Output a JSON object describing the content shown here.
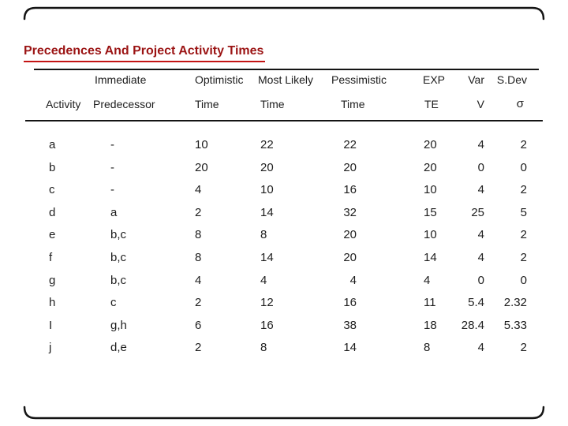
{
  "title": "Precedences And Project Activity Times",
  "colors": {
    "title_text": "#9b1414",
    "title_underline": "#c41414",
    "frame_border": "#141414",
    "body_text": "#1d1d1d",
    "background": "#ffffff"
  },
  "table": {
    "header_row1": {
      "immediate": "Immediate",
      "optimistic": "Optimistic",
      "most_likely": "Most Likely",
      "pessimistic": "Pessimistic",
      "exp": "EXP",
      "var": "Var",
      "sdev": "S.Dev"
    },
    "header_row2": {
      "activity": "Activity",
      "predecessor": "Predecessor",
      "time1": "Time",
      "time2": "Time",
      "time3": "Time",
      "te": "TE",
      "v": "V",
      "sigma": "σ"
    },
    "rows": [
      [
        "a",
        "-",
        "10",
        "22",
        "22",
        "20",
        "4",
        "2"
      ],
      [
        "b",
        "-",
        "20",
        "20",
        "20",
        "20",
        "0",
        "0"
      ],
      [
        "c",
        "-",
        "4",
        "10",
        "16",
        "10",
        "4",
        "2"
      ],
      [
        "d",
        "a",
        "2",
        "14",
        "32",
        "15",
        "25",
        "5"
      ],
      [
        "e",
        "b,c",
        "8",
        "8",
        "20",
        "10",
        "4",
        "2"
      ],
      [
        "f",
        "b,c",
        "8",
        "14",
        "20",
        "14",
        "4",
        "2"
      ],
      [
        "g",
        "b,c",
        "4",
        "4",
        "4",
        "4",
        "0",
        "0"
      ],
      [
        "h",
        "c",
        "2",
        "12",
        "16",
        "11",
        "5.4",
        "2.32"
      ],
      [
        "I",
        "g,h",
        "6",
        "16",
        "38",
        "18",
        "28.4",
        "5.33"
      ],
      [
        "j",
        "d,e",
        "2",
        "8",
        "14",
        "8",
        "4",
        "2"
      ]
    ]
  }
}
